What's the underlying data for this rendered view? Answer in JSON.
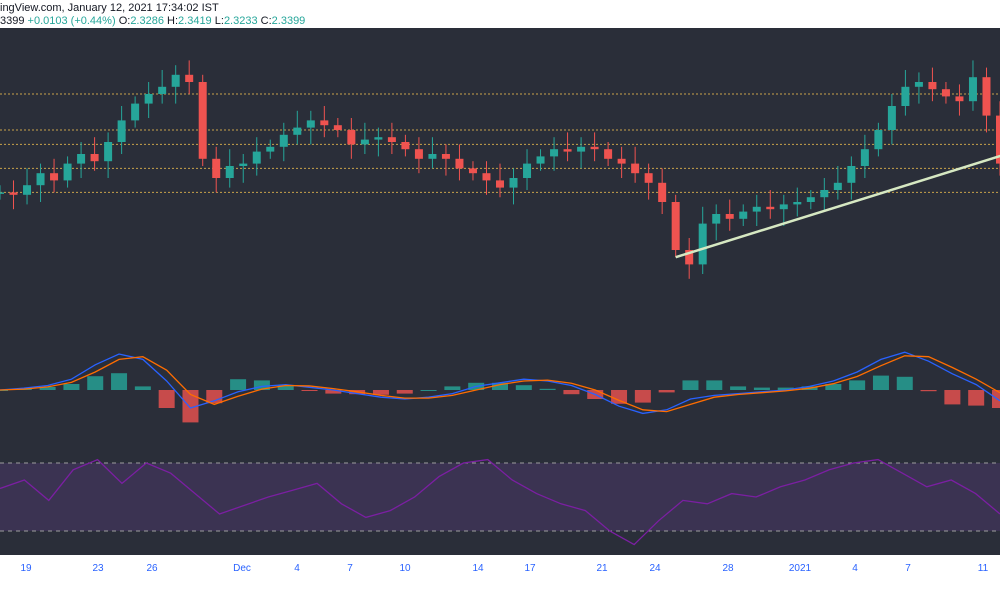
{
  "header": {
    "line1": "ingView.com, January 12, 2021 17:34:02 IST",
    "price_tail": "3399",
    "change": "+0.0103 (+0.44%)",
    "open_label": "O:",
    "open": "2.3286",
    "high_label": "H:",
    "high": "2.3419",
    "low_label": "L:",
    "low": "2.3233",
    "close_label": "C:",
    "close": "2.3399"
  },
  "colors": {
    "background": "#2a2e39",
    "up": "#26a69a",
    "down": "#ef5350",
    "level_lines": "#c8a24a",
    "trendline": "#d6e8c2",
    "macd_line": "#2962ff",
    "signal_line": "#ff6d00",
    "rsi": "#7b1fa2",
    "axis_text": "#2962ff"
  },
  "x_axis": {
    "ticks": [
      "19",
      "23",
      "26",
      "Dec",
      "4",
      "7",
      "10",
      "14",
      "17",
      "21",
      "24",
      "28",
      "2021",
      "4",
      "7",
      "11"
    ]
  },
  "chart_data": {
    "type": "candlestick",
    "price_shape": [
      44,
      43,
      47,
      52,
      49,
      56,
      60,
      57,
      65,
      74,
      81,
      85,
      88,
      93,
      90,
      58,
      50,
      55,
      56,
      61,
      63,
      68,
      71,
      74,
      72,
      70,
      64,
      66,
      67,
      65,
      62,
      58,
      60,
      58,
      54,
      52,
      49,
      46,
      50,
      56,
      59,
      62,
      61,
      63,
      62,
      58,
      56,
      52,
      48,
      40,
      20,
      14,
      31,
      35,
      33,
      36,
      38,
      37,
      39,
      40,
      42,
      45,
      48,
      55,
      62,
      70,
      80,
      88,
      90,
      87,
      84,
      82,
      92,
      76,
      56
    ],
    "horizontal_levels_shape": [
      85,
      70,
      64,
      54,
      44
    ],
    "trendline": {
      "from_index": 50,
      "to_index": 74
    },
    "macd_shape": [
      0,
      2,
      5,
      12,
      28,
      40,
      34,
      10,
      -20,
      -12,
      -2,
      4,
      6,
      3,
      0,
      -4,
      -8,
      -10,
      -8,
      -4,
      4,
      8,
      12,
      10,
      5,
      -5,
      -18,
      -26,
      -22,
      -10,
      -6,
      -4,
      -2,
      0,
      4,
      10,
      20,
      34,
      42,
      32,
      18,
      6,
      -12
    ],
    "rsi_shape": [
      55,
      60,
      48,
      66,
      72,
      58,
      70,
      64,
      52,
      40,
      45,
      50,
      54,
      58,
      46,
      38,
      42,
      50,
      62,
      70,
      72,
      60,
      52,
      46,
      42,
      30,
      22,
      36,
      48,
      46,
      52,
      50,
      56,
      60,
      66,
      70,
      72,
      64,
      56,
      60,
      52,
      40
    ],
    "rsi_bands": [
      70,
      30
    ]
  }
}
